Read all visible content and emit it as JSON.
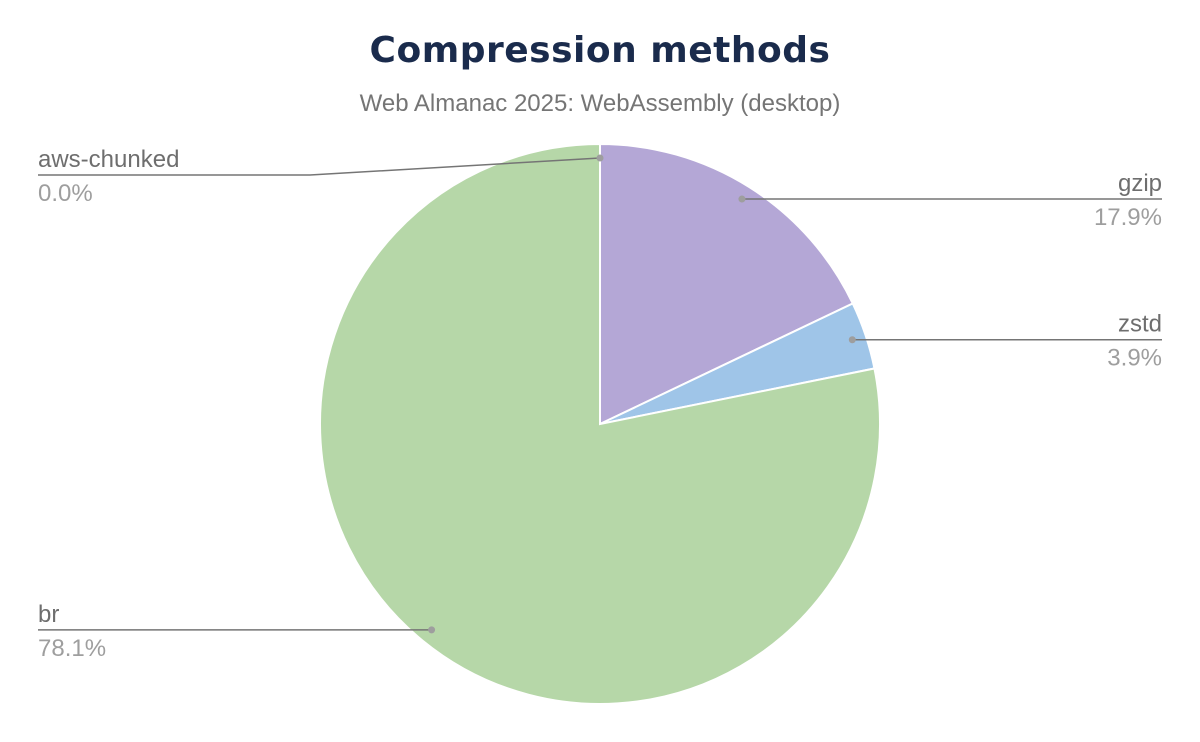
{
  "chart_data": {
    "type": "pie",
    "title": "Compression methods",
    "subtitle": "Web Almanac 2025: WebAssembly (desktop)",
    "slices": [
      {
        "label": "gzip",
        "value": 17.9,
        "display": "17.9%",
        "color": "#b4a7d6"
      },
      {
        "label": "zstd",
        "value": 3.9,
        "display": "3.9%",
        "color": "#9fc5e8"
      },
      {
        "label": "br",
        "value": 78.1,
        "display": "78.1%",
        "color": "#b6d7a8"
      },
      {
        "label": "aws-chunked",
        "value": 0.0,
        "display": "0.0%",
        "color": "#e06666"
      }
    ],
    "start_angle": "top",
    "direction": "clockwise",
    "legend": "none",
    "label_style": "leader-lines"
  }
}
